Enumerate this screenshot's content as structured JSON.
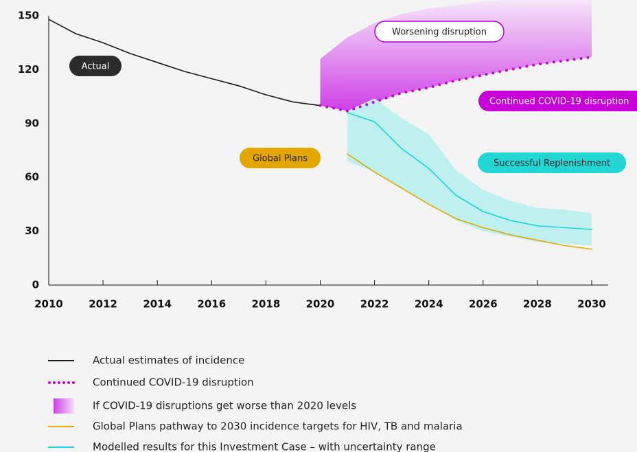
{
  "chart_data": {
    "type": "line",
    "x": [
      2010,
      2011,
      2012,
      2013,
      2014,
      2015,
      2016,
      2017,
      2018,
      2019,
      2020,
      2021,
      2022,
      2023,
      2024,
      2025,
      2026,
      2027,
      2028,
      2029,
      2030
    ],
    "xlim": [
      2010,
      2030
    ],
    "xticks": [
      2010,
      2012,
      2014,
      2016,
      2018,
      2020,
      2022,
      2024,
      2026,
      2028,
      2030
    ],
    "ylim": [
      0,
      150
    ],
    "yticks": [
      0,
      30,
      60,
      90,
      120,
      150
    ],
    "grid": false,
    "series": [
      {
        "name": "Actual estimates of incidence",
        "color": "#1a1a1a",
        "style": "solid",
        "values": [
          148,
          140,
          135,
          129,
          124,
          119,
          115,
          111,
          106,
          102,
          100,
          null,
          null,
          null,
          null,
          null,
          null,
          null,
          null,
          null,
          null
        ]
      },
      {
        "name": "Continued COVID-19 disruption",
        "color": "#c800d8",
        "style": "dotted",
        "values": [
          null,
          null,
          null,
          null,
          null,
          null,
          null,
          null,
          null,
          null,
          100,
          97,
          102,
          107,
          110,
          114,
          117,
          120,
          123,
          125,
          127
        ]
      },
      {
        "name": "If COVID-19 disruptions get worse than 2020 levels",
        "color": "#d65ae8",
        "style": "band",
        "lower": [
          null,
          null,
          null,
          null,
          null,
          null,
          null,
          null,
          null,
          null,
          100,
          97,
          102,
          107,
          110,
          114,
          117,
          120,
          123,
          125,
          127
        ],
        "upper": [
          null,
          null,
          null,
          null,
          null,
          null,
          null,
          null,
          null,
          null,
          126,
          138,
          146,
          151,
          154,
          156,
          158,
          159,
          159,
          159,
          159
        ]
      },
      {
        "name": "Global Plans pathway to 2030 incidence targets for HIV, TB and malaria",
        "color": "#e0a800",
        "style": "solid",
        "values": [
          null,
          null,
          null,
          null,
          null,
          null,
          null,
          null,
          null,
          null,
          null,
          73,
          63,
          54,
          45,
          37,
          32,
          28,
          25,
          22,
          20
        ]
      },
      {
        "name": "Modelled results for this Investment Case – with uncertainty range",
        "color": "#18d4dc",
        "style": "line-band",
        "values": [
          null,
          null,
          null,
          null,
          null,
          null,
          null,
          null,
          null,
          null,
          null,
          96,
          91,
          76,
          65,
          50,
          41,
          36,
          33,
          32,
          31
        ],
        "lower": [
          null,
          null,
          null,
          null,
          null,
          null,
          null,
          null,
          null,
          null,
          null,
          69,
          63,
          54,
          45,
          36,
          30,
          27,
          24,
          23,
          22
        ],
        "upper": [
          null,
          null,
          null,
          null,
          null,
          null,
          null,
          null,
          null,
          null,
          null,
          97,
          104,
          93,
          84,
          64,
          53,
          47,
          43,
          42,
          40
        ]
      }
    ],
    "annotations": [
      {
        "text": "Actual",
        "color": "#2b2b2b"
      },
      {
        "text": "Worsening disruption",
        "color": "#b400d6"
      },
      {
        "text": "Continued COVID-19 disruption",
        "color": "#c800d8"
      },
      {
        "text": "Global Plans",
        "color": "#e3a500"
      },
      {
        "text": "Successful Replenishment",
        "color": "#22d6d6"
      }
    ]
  }
}
